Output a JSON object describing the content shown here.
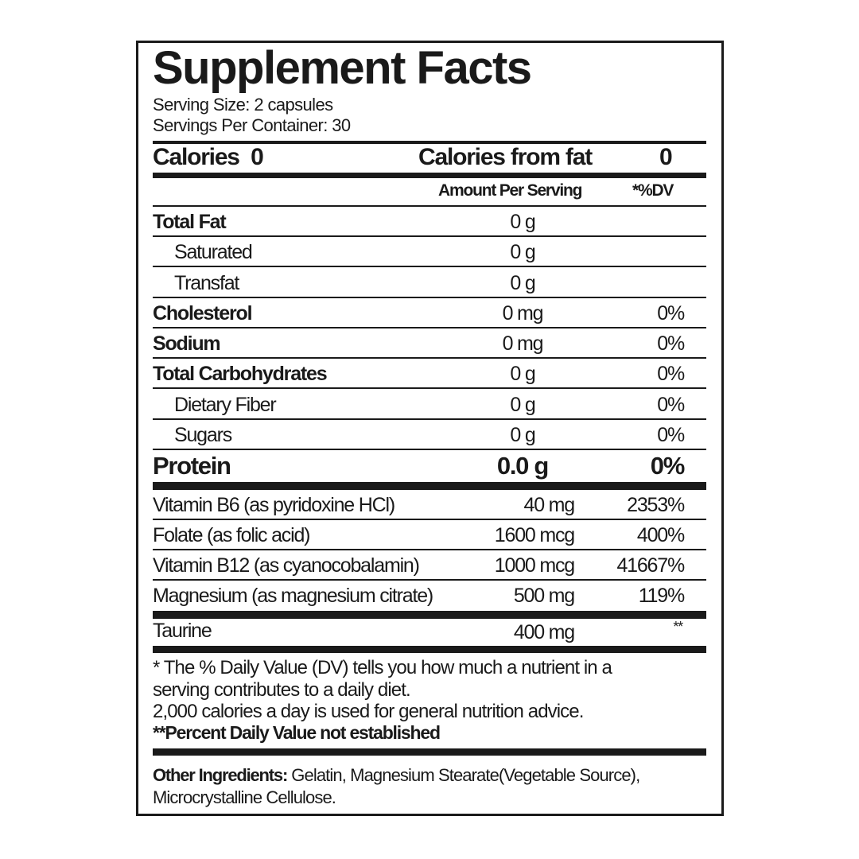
{
  "title": "Supplement Facts",
  "serving_size": "Serving Size: 2 capsules",
  "servings_per_container": "Servings Per Container: 30",
  "calories": {
    "label": "Calories",
    "value": "0",
    "from_fat_label": "Calories from fat",
    "from_fat_value": "0"
  },
  "columns": {
    "amount": "Amount Per Serving",
    "dv": "*%DV"
  },
  "nutrients": [
    {
      "label": "Total Fat",
      "amount": "0 g",
      "dv": ""
    },
    {
      "label": "Saturated",
      "amount": "0 g",
      "dv": ""
    },
    {
      "label": "Transfat",
      "amount": "0 g",
      "dv": ""
    },
    {
      "label": "Cholesterol",
      "amount": "0 mg",
      "dv": "0%"
    },
    {
      "label": "Sodium",
      "amount": "0 mg",
      "dv": "0%"
    },
    {
      "label": "Total Carbohydrates",
      "amount": "0 g",
      "dv": "0%"
    },
    {
      "label": "Dietary Fiber",
      "amount": "0 g",
      "dv": "0%"
    },
    {
      "label": "Sugars",
      "amount": "0 g",
      "dv": "0%"
    }
  ],
  "protein": {
    "label": "Protein",
    "amount": "0.0 g",
    "dv": "0%"
  },
  "vitamins": [
    {
      "label": "Vitamin B6 (as pyridoxine HCl)",
      "amount": "40 mg",
      "dv": "2353%"
    },
    {
      "label": "Folate (as folic acid)",
      "amount": "1600 mcg",
      "dv": "400%"
    },
    {
      "label": "Vitamin B12 (as cyanocobalamin)",
      "amount": "1000 mcg",
      "dv": "41667%"
    },
    {
      "label": "Magnesium (as magnesium citrate)",
      "amount": "500 mg",
      "dv": "119%"
    }
  ],
  "other": [
    {
      "label": "Taurine",
      "amount": "400 mg",
      "dv": "**"
    }
  ],
  "footnotes": [
    "* The % Daily Value (DV) tells you how much a nutrient in a",
    "serving contributes to a daily diet.",
    "2,000 calories a day is used for general nutrition advice.",
    "**Percent Daily Value not established"
  ],
  "ingredients": {
    "label": "Other Ingredients:",
    "line1": " Gelatin, Magnesium Stearate(Vegetable Source),",
    "line2": "Microcrystalline Cellulose."
  }
}
